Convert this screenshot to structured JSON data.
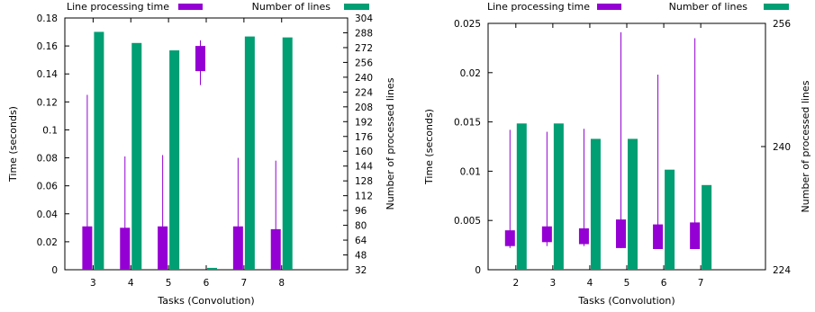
{
  "colors": {
    "time": "#9400d3",
    "lines": "#009e73",
    "axis": "#000000"
  },
  "chart_data": [
    {
      "type": "bar",
      "legend_time": "Line processing time",
      "legend_lines": "Number of lines",
      "legend_placement": "top",
      "xlabel": "Tasks (Convolution)",
      "ylabel_left": "Time (seconds)",
      "ylabel_right": "Number of processed lines",
      "categories": [
        "3",
        "4",
        "5",
        "6",
        "7",
        "8"
      ],
      "left_ylim": [
        0,
        0.18
      ],
      "left_ticks": [
        "0",
        "0.02",
        "0.04",
        "0.06",
        "0.08",
        "0.1",
        "0.12",
        "0.14",
        "0.16",
        "0.18"
      ],
      "right_ylim": [
        32,
        304
      ],
      "right_ticks": [
        "32",
        "48",
        "64",
        "80",
        "96",
        "112",
        "128",
        "144",
        "160",
        "176",
        "192",
        "208",
        "224",
        "240",
        "256",
        "272",
        "288",
        "304"
      ],
      "time_series": [
        {
          "category": "3",
          "box_low": 0.0,
          "box_high": 0.031,
          "whisker_low": 0.0,
          "whisker_high": 0.125
        },
        {
          "category": "4",
          "box_low": 0.0,
          "box_high": 0.03,
          "whisker_low": 0.0,
          "whisker_high": 0.081
        },
        {
          "category": "5",
          "box_low": 0.0,
          "box_high": 0.031,
          "whisker_low": 0.0,
          "whisker_high": 0.082
        },
        {
          "category": "6",
          "box_low": 0.142,
          "box_high": 0.16,
          "whisker_low": 0.132,
          "whisker_high": 0.164
        },
        {
          "category": "7",
          "box_low": 0.0,
          "box_high": 0.031,
          "whisker_low": 0.0,
          "whisker_high": 0.08
        },
        {
          "category": "8",
          "box_low": 0.0,
          "box_high": 0.029,
          "whisker_low": 0.0,
          "whisker_high": 0.078
        }
      ],
      "lines_values": [
        289,
        277,
        269,
        34,
        284,
        283
      ]
    },
    {
      "type": "bar",
      "legend_time": "Line processing time",
      "legend_lines": "Number of lines",
      "legend_placement": "top",
      "xlabel": "Tasks (Convolution)",
      "ylabel_left": "Time (seconds)",
      "ylabel_right": "Number of processed lines",
      "categories": [
        "2",
        "3",
        "4",
        "5",
        "6",
        "7"
      ],
      "left_ylim": [
        0,
        0.025
      ],
      "left_ticks": [
        "0",
        "0.005",
        "0.01",
        "0.015",
        "0.02",
        "0.025"
      ],
      "right_ylim": [
        224,
        256
      ],
      "right_ticks": [
        "224",
        "240",
        "256"
      ],
      "time_series": [
        {
          "category": "2",
          "box_low": 0.0024,
          "box_high": 0.004,
          "whisker_low": 0.0022,
          "whisker_high": 0.0142
        },
        {
          "category": "3",
          "box_low": 0.0028,
          "box_high": 0.0044,
          "whisker_low": 0.0024,
          "whisker_high": 0.014
        },
        {
          "category": "4",
          "box_low": 0.0026,
          "box_high": 0.0042,
          "whisker_low": 0.0024,
          "whisker_high": 0.0143
        },
        {
          "category": "5",
          "box_low": 0.0022,
          "box_high": 0.0051,
          "whisker_low": 0.0022,
          "whisker_high": 0.0241
        },
        {
          "category": "6",
          "box_low": 0.0021,
          "box_high": 0.0046,
          "whisker_low": 0.0021,
          "whisker_high": 0.0198
        },
        {
          "category": "7",
          "box_low": 0.0021,
          "box_high": 0.0048,
          "whisker_low": 0.0021,
          "whisker_high": 0.0235
        }
      ],
      "lines_values": [
        243,
        243,
        241,
        241,
        237,
        235
      ]
    }
  ]
}
